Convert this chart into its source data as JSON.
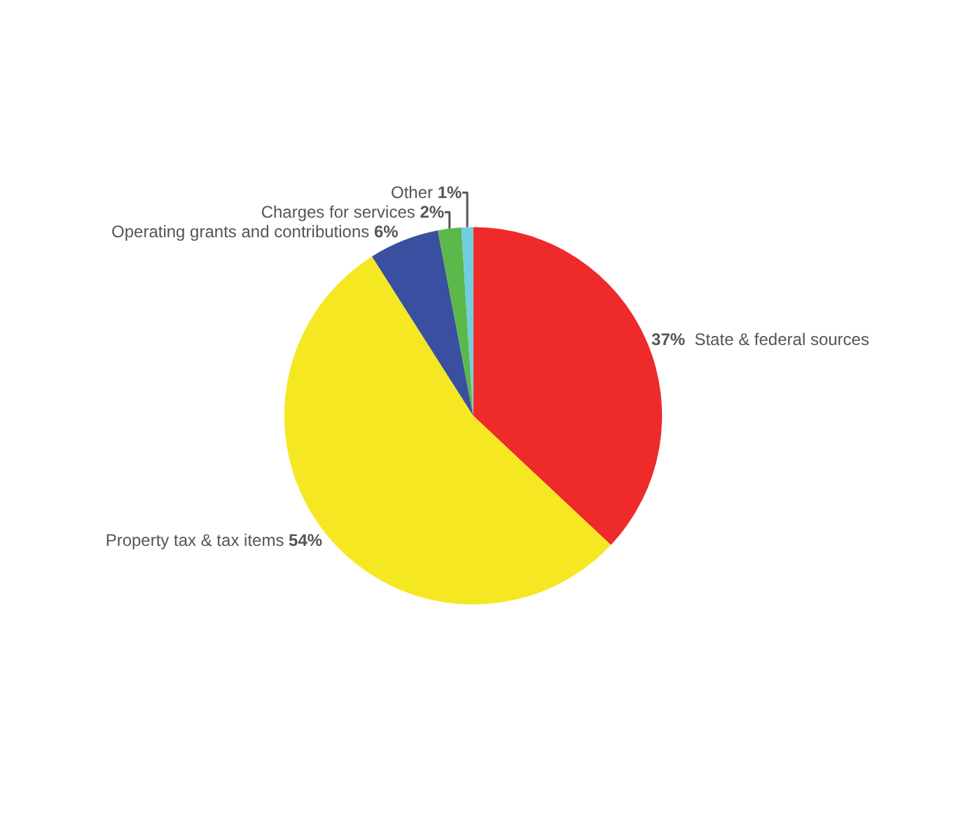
{
  "chart_data": {
    "type": "pie",
    "categories": [
      "State & federal sources",
      "Property tax & tax items",
      "Operating grants and contributions",
      "Charges for services",
      "Other"
    ],
    "values": [
      37,
      54,
      6,
      2,
      1
    ],
    "value_labels": [
      "37%",
      "54%",
      "6%",
      "2%",
      "1%"
    ],
    "colors": [
      "#ee2a2a",
      "#f5e823",
      "#3a4fa0",
      "#5cb84a",
      "#6fcfe0"
    ],
    "legend": false
  }
}
